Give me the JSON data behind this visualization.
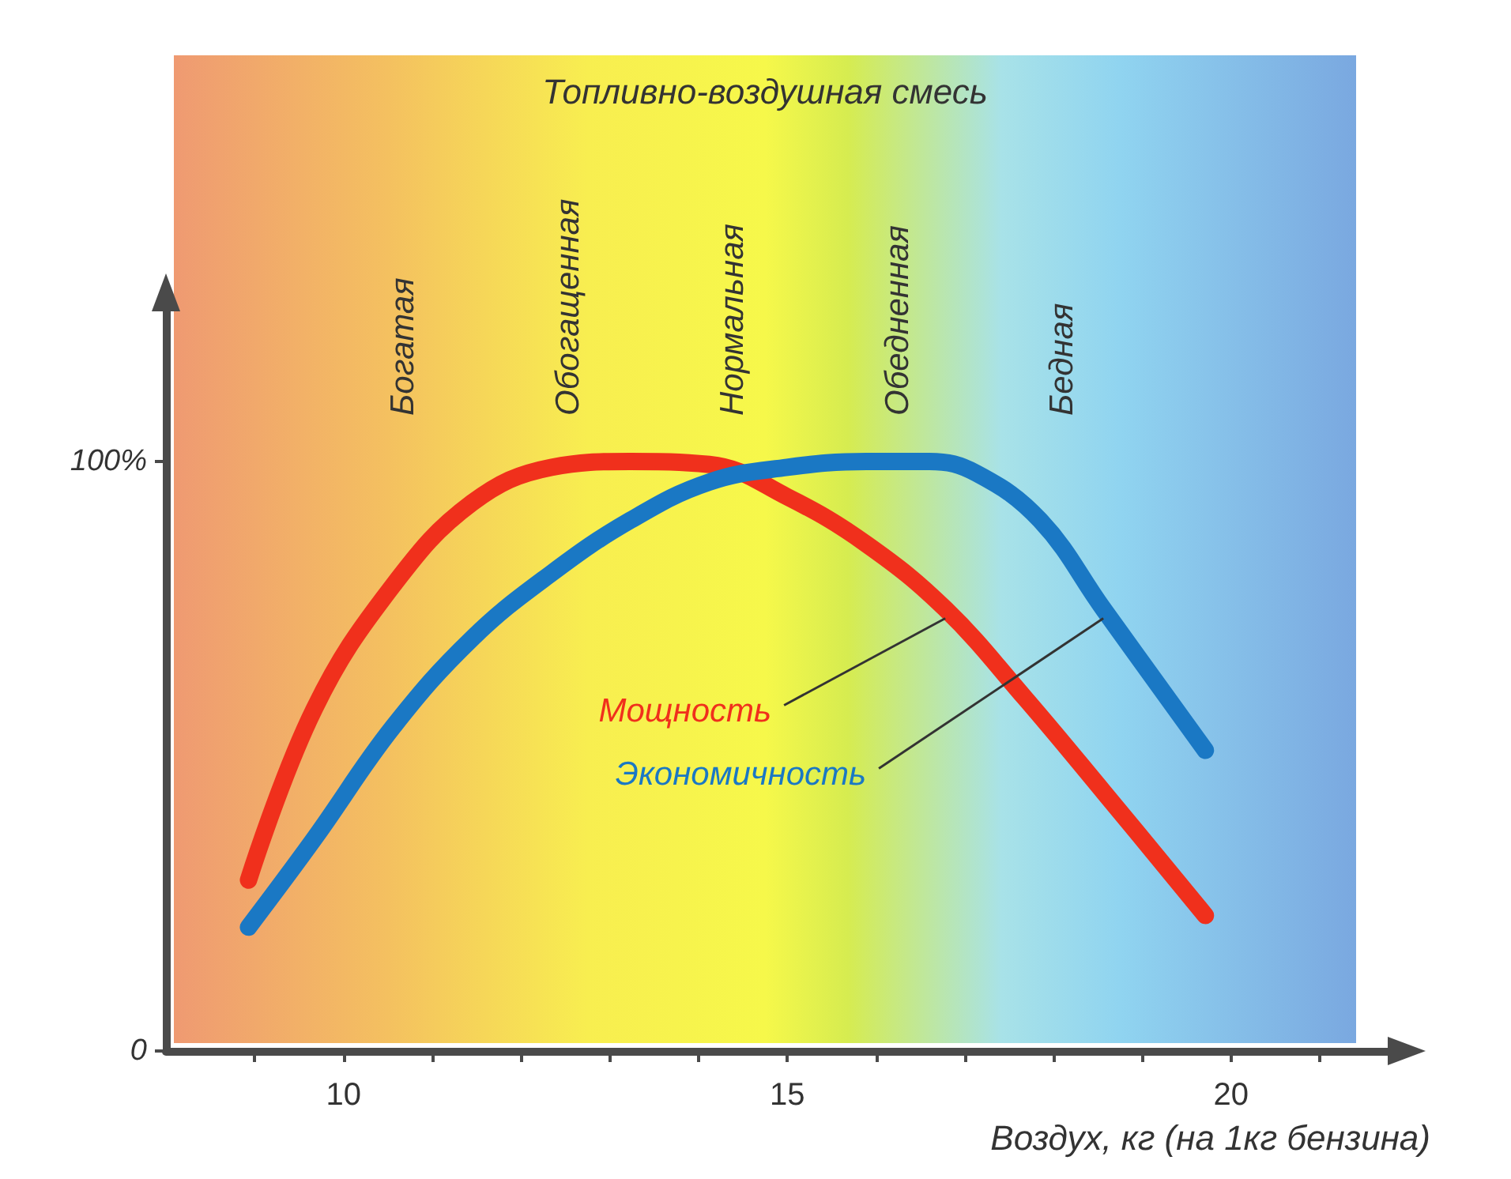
{
  "chart_data": {
    "type": "line",
    "title": "Топливно-воздушная смесь",
    "xlabel": "Воздух, кг (на 1кг бензина)",
    "annotations": [
      "Богатая",
      "Обогащенная",
      "Нормальная",
      "Обедненная",
      "Бедная"
    ],
    "series": [
      {
        "name": "Мощность",
        "color": "#f0301c",
        "x": [
          8.93,
          9.67,
          10.56,
          11.45,
          12.34,
          13.23,
          14.12,
          15.0,
          15.89,
          16.78,
          17.67,
          18.56,
          19.71
        ],
        "values": [
          29,
          58,
          79,
          93,
          99,
          100,
          99.5,
          94,
          86,
          75,
          60,
          44,
          23
        ]
      },
      {
        "name": "Экономичность",
        "color": "#1a78c4",
        "x": [
          8.93,
          9.67,
          10.56,
          11.45,
          12.34,
          13.23,
          14.12,
          15.0,
          15.89,
          16.6,
          17.13,
          17.85,
          18.56,
          19.71
        ],
        "values": [
          21,
          36,
          55,
          70,
          81,
          90,
          96.5,
          99,
          100,
          100,
          98,
          90,
          75,
          51
        ]
      }
    ],
    "xlim": [
      8,
      21.8
    ],
    "ylim": [
      0,
      126
    ],
    "xticks": [
      {
        "value": 9,
        "label": null
      },
      10,
      {
        "value": 11,
        "label": null
      },
      {
        "value": 12,
        "label": null
      },
      {
        "value": 13,
        "label": null
      },
      {
        "value": 14,
        "label": null
      },
      15,
      {
        "value": 16,
        "label": null
      },
      {
        "value": 17,
        "label": null
      },
      {
        "value": 18,
        "label": null
      },
      {
        "value": 19,
        "label": null
      },
      20,
      {
        "value": 21,
        "label": null
      }
    ],
    "yticks": [
      0,
      {
        "value": 100,
        "label": "100%"
      }
    ],
    "grid": false,
    "legend": false,
    "marker": "none",
    "line_style": "solid"
  }
}
